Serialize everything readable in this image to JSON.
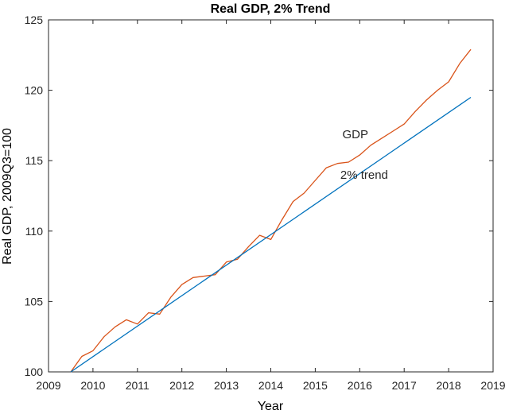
{
  "chart_data": {
    "type": "line",
    "title": "Real GDP, 2% Trend",
    "xlabel": "Year",
    "ylabel": "Real GDP, 2009Q3=100",
    "xlim": [
      2009,
      2019
    ],
    "ylim": [
      100,
      125
    ],
    "xticks": [
      2009,
      2010,
      2011,
      2012,
      2013,
      2014,
      2015,
      2016,
      2017,
      2018,
      2019
    ],
    "yticks": [
      100,
      105,
      110,
      115,
      120,
      125
    ],
    "grid": false,
    "series": [
      {
        "name": "GDP",
        "color": "#D95319",
        "x": [
          2009.5,
          2009.75,
          2010.0,
          2010.25,
          2010.5,
          2010.75,
          2011.0,
          2011.25,
          2011.5,
          2011.75,
          2012.0,
          2012.25,
          2012.5,
          2012.75,
          2013.0,
          2013.25,
          2013.5,
          2013.75,
          2014.0,
          2014.25,
          2014.5,
          2014.75,
          2015.0,
          2015.25,
          2015.5,
          2015.75,
          2016.0,
          2016.25,
          2016.5,
          2016.75,
          2017.0,
          2017.25,
          2017.5,
          2017.75,
          2018.0,
          2018.25,
          2018.5
        ],
        "y": [
          100.0,
          101.1,
          101.5,
          102.5,
          103.2,
          103.7,
          103.4,
          104.2,
          104.1,
          105.3,
          106.2,
          106.7,
          106.8,
          106.9,
          107.8,
          108.0,
          108.9,
          109.7,
          109.4,
          110.8,
          112.1,
          112.7,
          113.6,
          114.5,
          114.8,
          114.9,
          115.4,
          116.1,
          116.6,
          117.1,
          117.6,
          118.5,
          119.3,
          120.0,
          120.6,
          121.9,
          122.9
        ]
      },
      {
        "name": "2% trend",
        "color": "#0072BD",
        "x": [
          2009.5,
          2018.5
        ],
        "y": [
          100.0,
          119.5
        ]
      }
    ],
    "annotations": [
      {
        "text": "GDP",
        "x": 2015.9,
        "y": 116.6
      },
      {
        "text": "2% trend",
        "x": 2016.1,
        "y": 113.7
      }
    ]
  }
}
